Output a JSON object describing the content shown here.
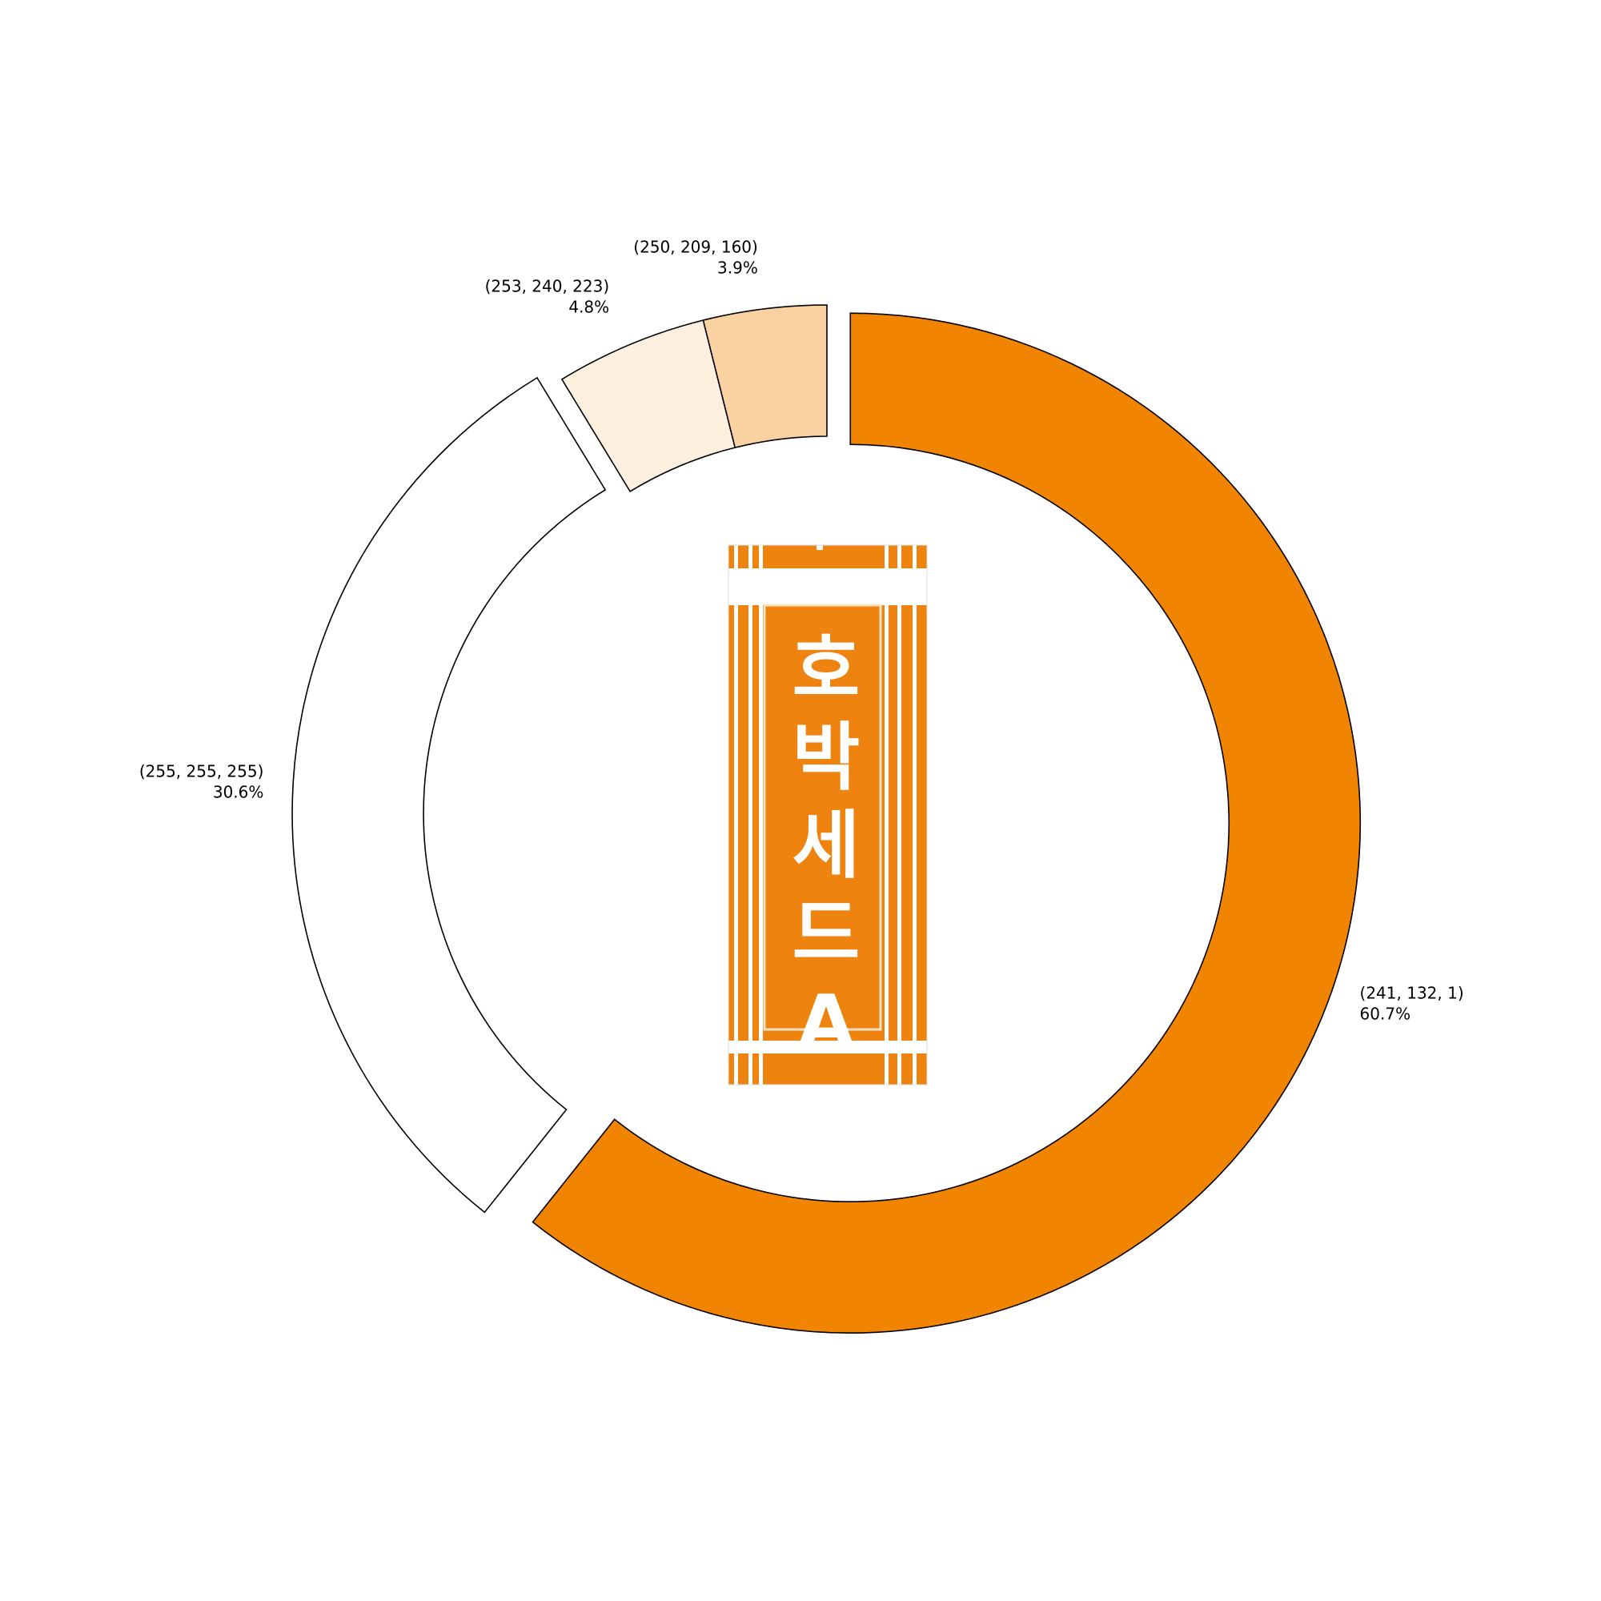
{
  "chart_data": {
    "type": "pie",
    "variant": "donut",
    "slices": [
      {
        "label": "(241, 132, 1)",
        "percent_label": "60.7%",
        "value": 60.7,
        "color": "#f18401",
        "exploded": true,
        "label_align": "left"
      },
      {
        "label": "(255, 255, 255)",
        "percent_label": "30.6%",
        "value": 30.6,
        "color": "#ffffff",
        "exploded": true,
        "label_align": "right"
      },
      {
        "label": "(253, 240, 223)",
        "percent_label": "4.8%",
        "value": 4.8,
        "color": "#fdf0df",
        "exploded": false,
        "label_align": "right"
      },
      {
        "label": "(250, 209, 160)",
        "percent_label": "3.9%",
        "value": 3.9,
        "color": "#fad1a0",
        "exploded": false,
        "label_align": "right"
      }
    ],
    "start": "top",
    "direction": "clockwise",
    "edge_color": "#000000",
    "center_image": {
      "description": "vertical orange banner with white Korean lettering",
      "text": "호박세드A",
      "colors": {
        "background": "#ee8310",
        "stripe": "#ffffff"
      }
    }
  }
}
